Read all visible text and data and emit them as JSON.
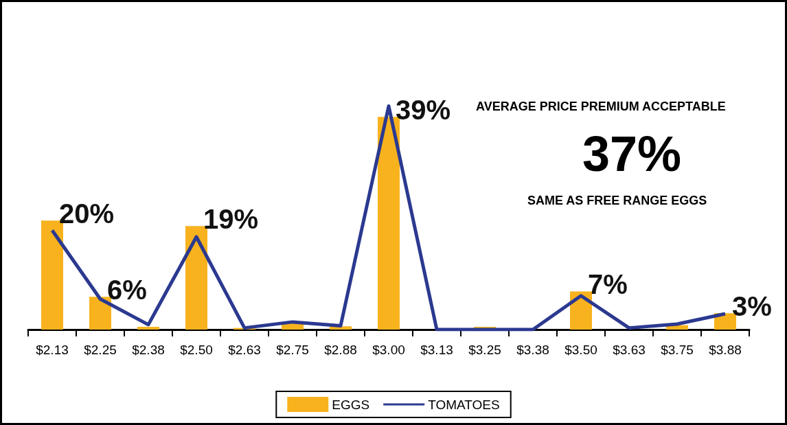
{
  "chart_data": {
    "type": "bar",
    "categories": [
      "$2.13",
      "$2.25",
      "$2.38",
      "$2.50",
      "$2.63",
      "$2.75",
      "$2.88",
      "$3.00",
      "$3.13",
      "$3.25",
      "$3.38",
      "$3.50",
      "$3.63",
      "$3.75",
      "$3.88"
    ],
    "series": [
      {
        "name": "EGGS",
        "color": "#f7b21e",
        "values": [
          20,
          6,
          0.5,
          19,
          0.3,
          1.4,
          0.6,
          39,
          0,
          0.5,
          0,
          7,
          0,
          0.8,
          3
        ],
        "value_labels": [
          "20%",
          "6%",
          null,
          "19%",
          null,
          null,
          null,
          "39%",
          null,
          null,
          null,
          "7%",
          null,
          null,
          "3%"
        ]
      },
      {
        "name": "TOMATOES",
        "type": "line",
        "color": "#2b3990",
        "values": [
          18.2,
          5.6,
          0.9,
          17,
          0.3,
          1.4,
          0.7,
          41,
          0,
          0,
          0,
          6.2,
          0.3,
          1,
          2.9
        ]
      }
    ],
    "annotations": [
      "AVERAGE PRICE PREMIUM ACCEPTABLE",
      "37%",
      "SAME AS FREE RANGE EGGS"
    ],
    "tick_labels": "x",
    "legend": "bottom",
    "marker": "none",
    "line_style": "solid"
  }
}
